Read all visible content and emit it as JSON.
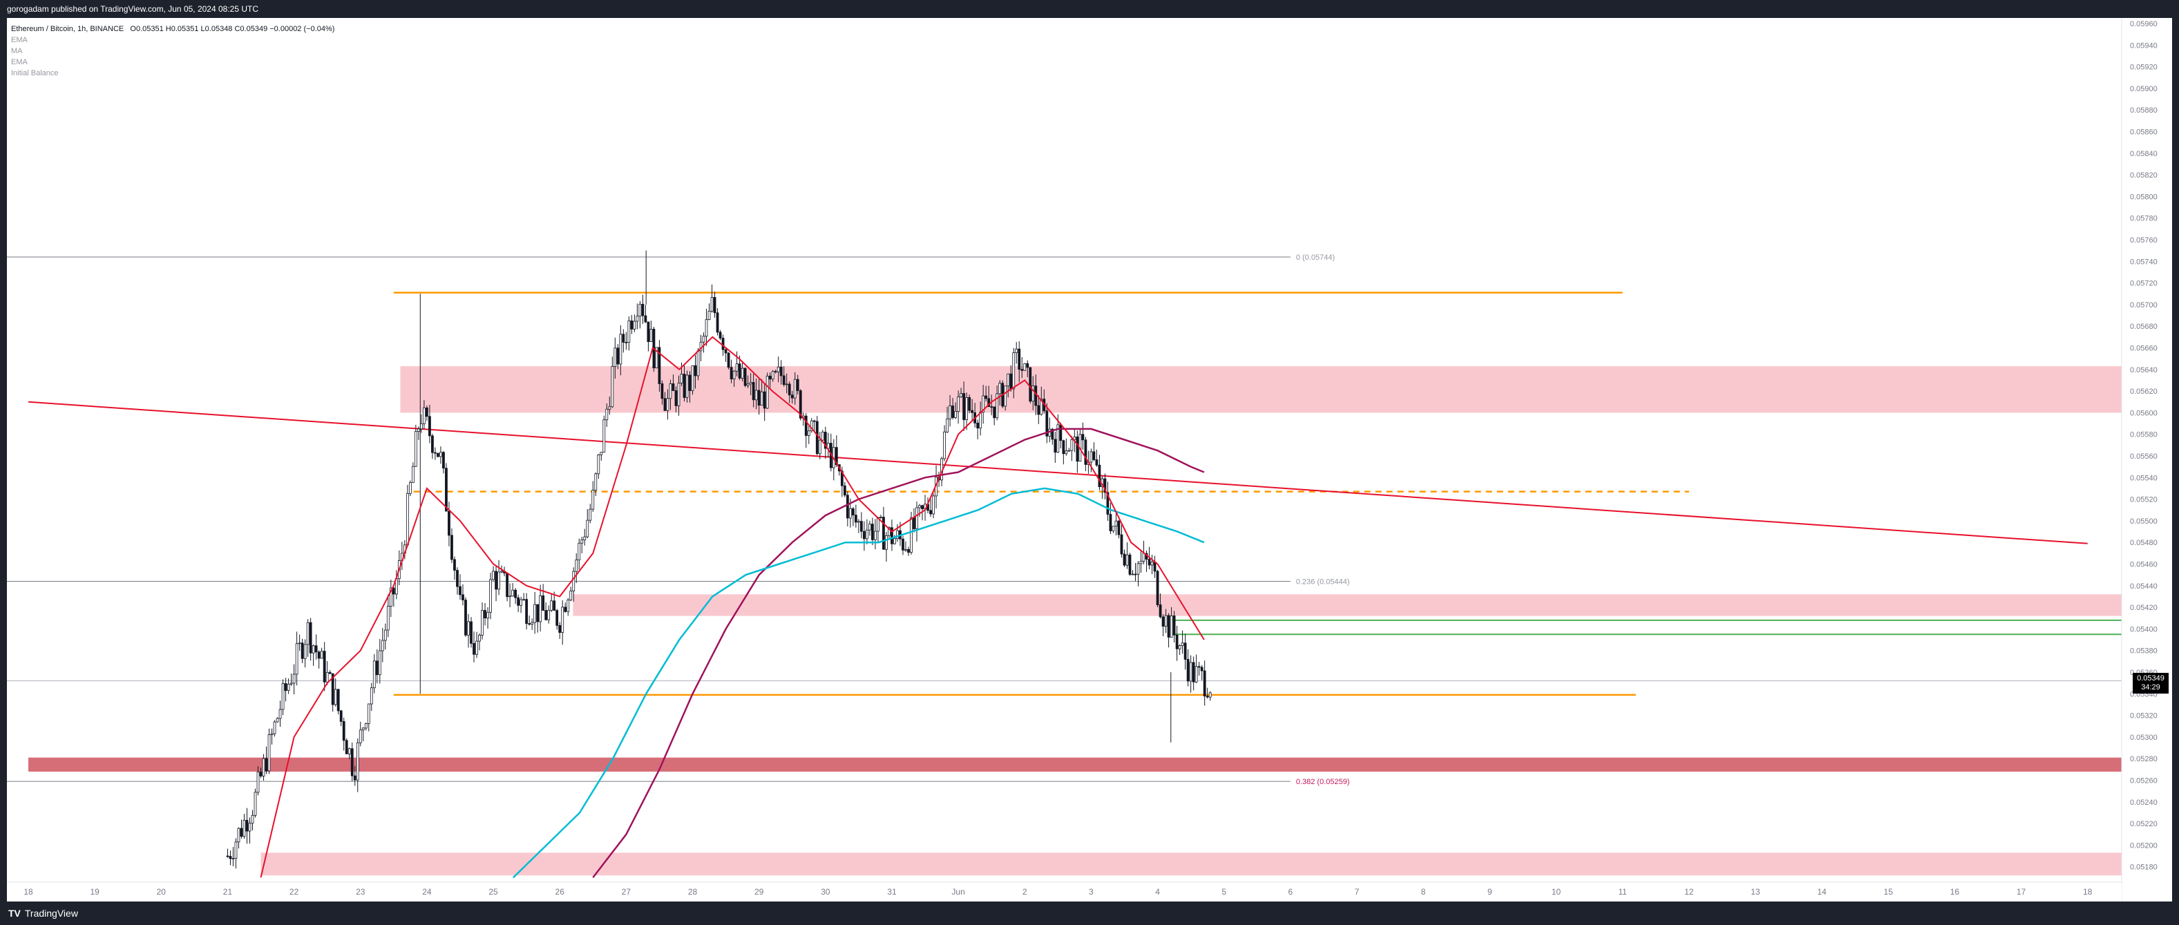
{
  "header": {
    "published": "gorogadam published on TradingView.com, Jun 05, 2024 08:25 UTC"
  },
  "legend": {
    "symbol": "Ethereum / Bitcoin, 1h, BINANCE",
    "ohlc": "O0.05351  H0.05351  L0.05348  C0.05349  −0.00002 (−0.04%)",
    "indicators": [
      "EMA",
      "MA",
      "EMA",
      "Initial Balance"
    ]
  },
  "footer": {
    "logo_mark": "TV",
    "logo_text": "TradingView"
  },
  "price_scale": {
    "labels": [
      "0.05960",
      "0.05940",
      "0.05920",
      "0.05900",
      "0.05880",
      "0.05860",
      "0.05840",
      "0.05820",
      "0.05800",
      "0.05780",
      "0.05760",
      "0.05740",
      "0.05720",
      "0.05700",
      "0.05680",
      "0.05660",
      "0.05640",
      "0.05620",
      "0.05600",
      "0.05580",
      "0.05560",
      "0.05540",
      "0.05520",
      "0.05500",
      "0.05480",
      "0.05460",
      "0.05440",
      "0.05420",
      "0.05400",
      "0.05380",
      "0.05360",
      "0.05340",
      "0.05320",
      "0.05300",
      "0.05280",
      "0.05260",
      "0.05240",
      "0.05220",
      "0.05200",
      "0.05180"
    ],
    "current_price": "0.05349",
    "countdown": "34:29"
  },
  "time_scale": {
    "labels": [
      "18",
      "19",
      "20",
      "21",
      "22",
      "23",
      "24",
      "25",
      "26",
      "27",
      "28",
      "29",
      "30",
      "31",
      "Jun",
      "2",
      "3",
      "4",
      "5",
      "6",
      "7",
      "8",
      "9",
      "10",
      "11",
      "12",
      "13",
      "14",
      "15",
      "16",
      "17",
      "18"
    ]
  },
  "fib_labels": {
    "top": "0 (0.05744)",
    "mid": "0.236 (0.05444)",
    "bottom": "0.382 (0.05259)"
  },
  "colors": {
    "candle": "#131722",
    "ema_fast": "#e8102b",
    "ema_mid": "#00bcd4",
    "ema_slow": "#a0125b",
    "trendline": "#e8102b",
    "orange_level": "#ff9800",
    "green_level": "#4caf50",
    "zone_light": "#f7b6be",
    "zone_dark": "#c4303f"
  },
  "chart_data": {
    "type": "candlestick",
    "symbol": "ETHBTC",
    "interval": "1h",
    "ylim": [
      0.0517,
      0.0597
    ],
    "price_path": [
      [
        21.0,
        0.0519
      ],
      [
        21.4,
        0.0524
      ],
      [
        21.8,
        0.0533
      ],
      [
        22.2,
        0.054
      ],
      [
        22.6,
        0.0534
      ],
      [
        22.9,
        0.0527
      ],
      [
        23.1,
        0.0533
      ],
      [
        23.6,
        0.0546
      ],
      [
        23.9,
        0.056
      ],
      [
        24.2,
        0.0556
      ],
      [
        24.5,
        0.0542
      ],
      [
        24.75,
        0.0538
      ],
      [
        25.0,
        0.0545
      ],
      [
        25.5,
        0.0542
      ],
      [
        26.0,
        0.0541
      ],
      [
        26.5,
        0.0552
      ],
      [
        26.8,
        0.0564
      ],
      [
        27.2,
        0.0571
      ],
      [
        27.6,
        0.0561
      ],
      [
        28.0,
        0.0563
      ],
      [
        28.3,
        0.057
      ],
      [
        28.6,
        0.0564
      ],
      [
        29.0,
        0.0561
      ],
      [
        29.4,
        0.0564
      ],
      [
        29.8,
        0.0558
      ],
      [
        30.1,
        0.0556
      ],
      [
        30.4,
        0.055
      ],
      [
        30.8,
        0.0549
      ],
      [
        31.2,
        0.0548
      ],
      [
        31.6,
        0.0552
      ],
      [
        31.9,
        0.0561
      ],
      [
        32.3,
        0.056
      ],
      [
        32.6,
        0.0561
      ],
      [
        32.9,
        0.0565
      ],
      [
        33.1,
        0.0562
      ],
      [
        33.4,
        0.0558
      ],
      [
        33.7,
        0.0557
      ],
      [
        34.0,
        0.0556
      ],
      [
        34.3,
        0.055
      ],
      [
        34.6,
        0.0546
      ],
      [
        34.9,
        0.0546
      ],
      [
        35.1,
        0.0541
      ],
      [
        35.3,
        0.0539
      ],
      [
        35.5,
        0.0536
      ],
      [
        35.8,
        0.05349
      ]
    ],
    "ema_fast": [
      [
        21.5,
        0.0517
      ],
      [
        22.0,
        0.053
      ],
      [
        22.5,
        0.0535
      ],
      [
        23.0,
        0.0538
      ],
      [
        23.5,
        0.0544
      ],
      [
        24.0,
        0.0553
      ],
      [
        24.5,
        0.055
      ],
      [
        25.0,
        0.0546
      ],
      [
        25.5,
        0.0544
      ],
      [
        26.0,
        0.0543
      ],
      [
        26.5,
        0.0547
      ],
      [
        27.0,
        0.0557
      ],
      [
        27.4,
        0.0566
      ],
      [
        27.8,
        0.0564
      ],
      [
        28.3,
        0.0567
      ],
      [
        28.7,
        0.0565
      ],
      [
        29.2,
        0.0562
      ],
      [
        29.6,
        0.056
      ],
      [
        30.0,
        0.0557
      ],
      [
        30.5,
        0.0552
      ],
      [
        31.0,
        0.0549
      ],
      [
        31.5,
        0.0551
      ],
      [
        32.0,
        0.0558
      ],
      [
        32.5,
        0.0561
      ],
      [
        33.0,
        0.0563
      ],
      [
        33.4,
        0.056
      ],
      [
        33.8,
        0.0557
      ],
      [
        34.2,
        0.0553
      ],
      [
        34.6,
        0.0548
      ],
      [
        35.0,
        0.0546
      ],
      [
        35.4,
        0.0542
      ],
      [
        35.7,
        0.0539
      ]
    ],
    "ema_mid": [
      [
        25.3,
        0.0517
      ],
      [
        25.8,
        0.052
      ],
      [
        26.3,
        0.0523
      ],
      [
        26.8,
        0.0528
      ],
      [
        27.3,
        0.0534
      ],
      [
        27.8,
        0.0539
      ],
      [
        28.3,
        0.0543
      ],
      [
        28.8,
        0.0545
      ],
      [
        29.3,
        0.0546
      ],
      [
        29.8,
        0.0547
      ],
      [
        30.3,
        0.0548
      ],
      [
        30.8,
        0.0548
      ],
      [
        31.3,
        0.0549
      ],
      [
        31.8,
        0.055
      ],
      [
        32.3,
        0.0551
      ],
      [
        32.8,
        0.05525
      ],
      [
        33.3,
        0.0553
      ],
      [
        33.8,
        0.05525
      ],
      [
        34.3,
        0.0551
      ],
      [
        34.8,
        0.055
      ],
      [
        35.3,
        0.0549
      ],
      [
        35.7,
        0.0548
      ]
    ],
    "ema_slow": [
      [
        26.5,
        0.0517
      ],
      [
        27.0,
        0.0521
      ],
      [
        27.5,
        0.0527
      ],
      [
        28.0,
        0.0534
      ],
      [
        28.5,
        0.054
      ],
      [
        29.0,
        0.0545
      ],
      [
        29.5,
        0.0548
      ],
      [
        30.0,
        0.05505
      ],
      [
        30.5,
        0.0552
      ],
      [
        31.0,
        0.0553
      ],
      [
        31.5,
        0.0554
      ],
      [
        32.0,
        0.05545
      ],
      [
        32.5,
        0.0556
      ],
      [
        33.0,
        0.05575
      ],
      [
        33.5,
        0.05585
      ],
      [
        34.0,
        0.05585
      ],
      [
        34.5,
        0.05575
      ],
      [
        35.0,
        0.05565
      ],
      [
        35.5,
        0.0555
      ],
      [
        35.7,
        0.05545
      ]
    ],
    "trendline": [
      [
        18.0,
        0.0561
      ],
      [
        49.0,
        0.05479
      ]
    ],
    "fib_levels": [
      {
        "ratio": "0",
        "price": 0.05744
      },
      {
        "ratio": "0.236",
        "price": 0.05444
      },
      {
        "ratio": "0.382",
        "price": 0.05259
      }
    ],
    "orange_levels": [
      {
        "price": 0.05711,
        "from": 23.5,
        "to": 42.0,
        "style": "solid"
      },
      {
        "price": 0.05527,
        "from": 23.8,
        "to": 43.0,
        "style": "dashed"
      },
      {
        "price": 0.05339,
        "from": 23.5,
        "to": 42.2,
        "style": "solid"
      }
    ],
    "green_levels": [
      0.05408,
      0.05395
    ],
    "grey_line": 0.05352,
    "zones": [
      {
        "from": 0.056,
        "to": 0.05643,
        "start": 23.6,
        "shade": "light"
      },
      {
        "from": 0.05412,
        "to": 0.05432,
        "start": 26.2,
        "shade": "light"
      },
      {
        "from": 0.05268,
        "to": 0.05281,
        "start": 18.0,
        "shade": "dark"
      },
      {
        "from": 0.05172,
        "to": 0.05193,
        "start": 21.5,
        "shade": "light"
      }
    ]
  }
}
